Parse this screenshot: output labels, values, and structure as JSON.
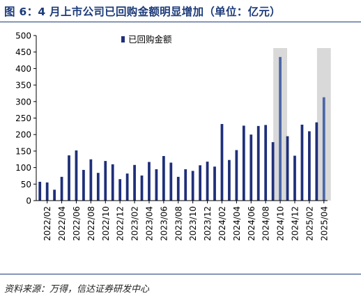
{
  "figure": {
    "title": "图 6：4 月上市公司已回购金额明显增加（单位：亿元）",
    "source": "资料来源：万得，信达证券研发中心"
  },
  "colors": {
    "bar": "#1f2f7a",
    "highlight_bar": "#4a66a8",
    "highlight_band": "#d9d9d9",
    "rule": "#1d3b7a"
  },
  "chart_data": {
    "type": "bar",
    "series": [
      {
        "name": "已回购金额",
        "values": [
          57,
          55,
          33,
          72,
          137,
          152,
          93,
          125,
          84,
          120,
          110,
          65,
          82,
          108,
          76,
          117,
          95,
          135,
          115,
          72,
          95,
          90,
          107,
          118,
          103,
          232,
          123,
          153,
          227,
          200,
          226,
          229,
          177,
          435,
          195,
          136,
          230,
          210,
          237,
          313
        ]
      }
    ],
    "categories": [
      "2022/01",
      "2022/02",
      "2022/03",
      "2022/04",
      "2022/05",
      "2022/06",
      "2022/07",
      "2022/08",
      "2022/09",
      "2022/10",
      "2022/11",
      "2022/12",
      "2023/01",
      "2023/02",
      "2023/03",
      "2023/04",
      "2023/05",
      "2023/06",
      "2023/07",
      "2023/08",
      "2023/09",
      "2023/10",
      "2023/11",
      "2023/12",
      "2024/01",
      "2024/02",
      "2024/03",
      "2024/04",
      "2024/05",
      "2024/06",
      "2024/07",
      "2024/08",
      "2024/09",
      "2024/10",
      "2024/11",
      "2024/12",
      "2025/01",
      "2025/02",
      "2025/03",
      "2025/04"
    ],
    "x_tick_labels": [
      "2022/02",
      "2022/04",
      "2022/06",
      "2022/08",
      "2022/10",
      "2022/12",
      "2023/02",
      "2023/04",
      "2023/06",
      "2023/08",
      "2023/10",
      "2023/12",
      "2024/02",
      "2024/04",
      "2024/06",
      "2024/08",
      "2024/10",
      "2024/12",
      "2025/02",
      "2025/04"
    ],
    "highlight_categories": [
      "2024/10",
      "2025/04"
    ],
    "y_ticks": [
      0,
      50,
      100,
      150,
      200,
      250,
      300,
      350,
      400,
      450,
      500
    ],
    "ylim": [
      0,
      500
    ],
    "grid": false,
    "legend_position": "top-center"
  }
}
